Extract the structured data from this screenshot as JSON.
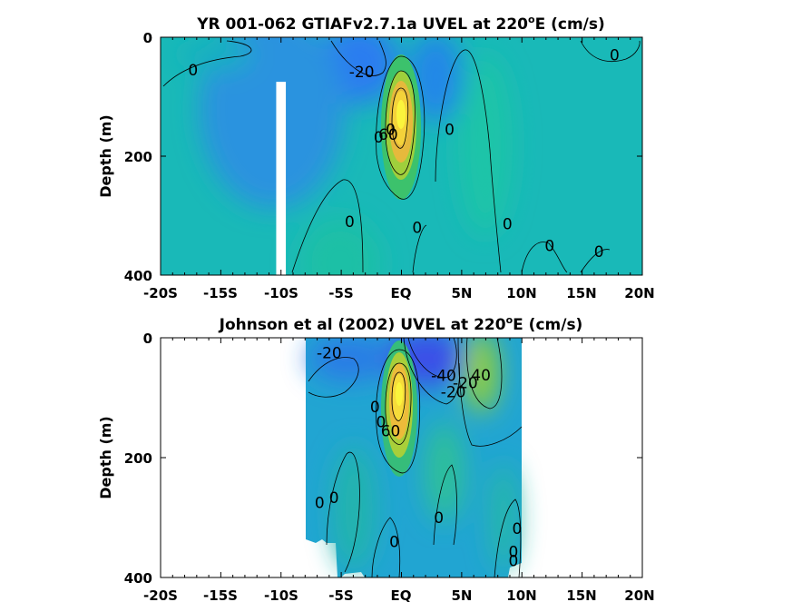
{
  "chart_data": [
    {
      "type": "heatmap",
      "title_main": "YR 001-062 GTIAFv2.7.1a UVEL at 220",
      "title_sup": "o",
      "title_end": "E (cm/s)",
      "ylabel": "Depth (m)",
      "x_ticks": [
        "-20S",
        "-15S",
        "-10S",
        "-5S",
        "EQ",
        "5N",
        "10N",
        "15N",
        "20N"
      ],
      "x_tick_values": [
        -20,
        -15,
        -10,
        -5,
        0,
        5,
        10,
        15,
        20
      ],
      "y_ticks": [
        "0",
        "200",
        "400"
      ],
      "y_tick_values": [
        0,
        200,
        400
      ],
      "xlim": [
        -20,
        20
      ],
      "ylim": [
        400,
        0
      ],
      "y_reversed": true,
      "coverage_lat": [
        -20,
        20
      ],
      "gap": {
        "lat": [
          -10.4,
          -9.6
        ],
        "depth": [
          75,
          400
        ]
      },
      "features": [
        {
          "lat": 0,
          "depth": 130,
          "value": 110
        },
        {
          "lat": -2.5,
          "depth": 20,
          "value": -30
        },
        {
          "lat": 3,
          "depth": 40,
          "value": -20
        },
        {
          "lat": -14,
          "depth": 80,
          "value": -10
        },
        {
          "lat": 6,
          "depth": 120,
          "value": 10
        },
        {
          "lat": -6,
          "depth": 320,
          "value": 8
        },
        {
          "lat": 14,
          "depth": 20,
          "value": -5
        }
      ],
      "contour_labels": [
        {
          "text": "0",
          "lat": -17.3,
          "depth": 55
        },
        {
          "text": "-20",
          "lat": -3.3,
          "depth": 58
        },
        {
          "text": "0",
          "lat": 17.7,
          "depth": 30
        },
        {
          "text": "0",
          "lat": 4,
          "depth": 155
        },
        {
          "text": "0",
          "lat": -1.9,
          "depth": 168
        },
        {
          "text": "0",
          "lat": -0.9,
          "depth": 155
        },
        {
          "text": "60",
          "lat": -1.1,
          "depth": 163
        },
        {
          "text": "0",
          "lat": -4.3,
          "depth": 310
        },
        {
          "text": "0",
          "lat": 1.3,
          "depth": 320
        },
        {
          "text": "0",
          "lat": 8.8,
          "depth": 314
        },
        {
          "text": "0",
          "lat": 12.3,
          "depth": 350
        },
        {
          "text": "0",
          "lat": 16.4,
          "depth": 360
        }
      ]
    },
    {
      "type": "heatmap",
      "title_main": "Johnson et al (2002) UVEL at 220",
      "title_sup": "o",
      "title_end": "E (cm/s)",
      "ylabel": "Depth (m)",
      "x_ticks": [
        "-20S",
        "-15S",
        "-10S",
        "-5S",
        "EQ",
        "5N",
        "10N",
        "15N",
        "20N"
      ],
      "x_tick_values": [
        -20,
        -15,
        -10,
        -5,
        0,
        5,
        10,
        15,
        20
      ],
      "y_ticks": [
        "0",
        "200",
        "400"
      ],
      "y_tick_values": [
        0,
        200,
        400
      ],
      "xlim": [
        -20,
        20
      ],
      "ylim": [
        400,
        0
      ],
      "y_reversed": true,
      "coverage_lat": [
        -8,
        10
      ],
      "features": [
        {
          "lat": -0.3,
          "depth": 110,
          "value": 110
        },
        {
          "lat": 1.3,
          "depth": 30,
          "value": -45
        },
        {
          "lat": -4.5,
          "depth": 30,
          "value": -25
        },
        {
          "lat": 7,
          "depth": 60,
          "value": 40
        },
        {
          "lat": 3.5,
          "depth": 220,
          "value": 15
        },
        {
          "lat": -3,
          "depth": 260,
          "value": 10
        },
        {
          "lat": 8,
          "depth": 280,
          "value": 8
        }
      ],
      "contour_labels": [
        {
          "text": "-20",
          "lat": -6,
          "depth": 25
        },
        {
          "text": "-40",
          "lat": 3.5,
          "depth": 63
        },
        {
          "text": "-20",
          "lat": 4.3,
          "depth": 90
        },
        {
          "text": "-20",
          "lat": 5.3,
          "depth": 75
        },
        {
          "text": "40",
          "lat": 6.6,
          "depth": 62
        },
        {
          "text": "0",
          "lat": -2.2,
          "depth": 115
        },
        {
          "text": "0",
          "lat": -1.7,
          "depth": 140
        },
        {
          "text": "60",
          "lat": -0.9,
          "depth": 155
        },
        {
          "text": "0",
          "lat": -6.8,
          "depth": 275
        },
        {
          "text": "0",
          "lat": -5.6,
          "depth": 267
        },
        {
          "text": "0",
          "lat": -0.6,
          "depth": 340
        },
        {
          "text": "0",
          "lat": 3.1,
          "depth": 300
        },
        {
          "text": "0",
          "lat": 9.6,
          "depth": 318
        },
        {
          "text": "0",
          "lat": 9.3,
          "depth": 357
        },
        {
          "text": "0",
          "lat": 9.3,
          "depth": 372
        }
      ]
    }
  ]
}
